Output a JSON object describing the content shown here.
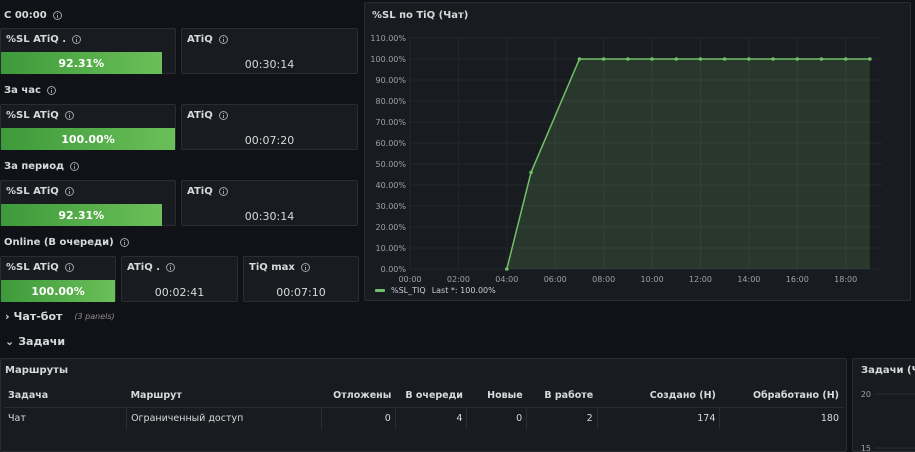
{
  "sections": {
    "since_midnight": "С 00:00",
    "per_hour": "За час",
    "per_period": "За период",
    "online": "Online (В очереди)"
  },
  "stats": {
    "since_midnight": {
      "sl_title": "%SL ATiQ .",
      "sl_value": "92.31%",
      "sl_fraction": 0.9231,
      "atiq_title": "ATiQ",
      "atiq_value": "00:30:14"
    },
    "per_hour": {
      "sl_title": "%SL ATiQ",
      "sl_value": "100.00%",
      "sl_fraction": 1.0,
      "atiq_title": "ATiQ",
      "atiq_value": "00:07:20"
    },
    "per_period": {
      "sl_title": "%SL ATiQ",
      "sl_value": "92.31%",
      "sl_fraction": 0.9231,
      "atiq_title": "ATiQ",
      "atiq_value": "00:30:14"
    },
    "online": {
      "sl_title": "%SL ATiQ",
      "sl_value": "100.00%",
      "sl_fraction": 1.0,
      "atiq_title": "ATiQ .",
      "atiq_value": "00:02:41",
      "tiq_title": "TiQ max",
      "tiq_value": "00:07:10"
    }
  },
  "chart_panel": {
    "title": "%SL по TiQ (Чат)",
    "legend_label": "%SL_TIQ",
    "legend_last": "Last *: 100.00%"
  },
  "chart_data": {
    "type": "area",
    "title": "%SL по TiQ (Чат)",
    "x": [
      "04:00",
      "05:00",
      "07:00",
      "08:00",
      "09:00",
      "10:00",
      "11:00",
      "12:00",
      "13:00",
      "14:00",
      "15:00",
      "16:00",
      "17:00",
      "18:00",
      "19:00"
    ],
    "series": [
      {
        "name": "%SL_TIQ",
        "values": [
          0,
          46,
          100,
          100,
          100,
          100,
          100,
          100,
          100,
          100,
          100,
          100,
          100,
          100,
          100
        ],
        "color": "#73bf69"
      }
    ],
    "x_ticks": [
      "00:00",
      "02:00",
      "04:00",
      "06:00",
      "08:00",
      "10:00",
      "12:00",
      "14:00",
      "16:00",
      "18:00"
    ],
    "y_ticks": [
      "0.00%",
      "10.00%",
      "20.00%",
      "30.00%",
      "40.00%",
      "50.00%",
      "60.00%",
      "70.00%",
      "80.00%",
      "90.00%",
      "100.00%",
      "110.00%"
    ],
    "ylim": [
      0,
      110
    ],
    "xlim_hours": [
      0,
      19.5
    ],
    "grid": true,
    "legend": "bottom-left"
  },
  "rows": {
    "chatbot": {
      "label": "Чат-бот",
      "note": "(3 panels)"
    },
    "tasks": {
      "label": "Задачи"
    }
  },
  "routes_panel": {
    "title": "Маршруты",
    "columns": [
      "Задача",
      "Маршрут",
      "Отложены",
      "В очереди",
      "Новые",
      "В работе",
      "Создано (Н)",
      "Обработано (Н)"
    ],
    "rows": [
      [
        "Чат",
        "Ограниченный доступ",
        "0",
        "4",
        "0",
        "2",
        "174",
        "180"
      ]
    ]
  },
  "tasks_panel": {
    "title": "Задачи (Чат",
    "y_ticks": [
      "20",
      "15"
    ]
  },
  "colors": {
    "background": "#111217",
    "panel": "#181b1f",
    "green": "#73bf69",
    "green_dark": "#3d9a3a"
  }
}
